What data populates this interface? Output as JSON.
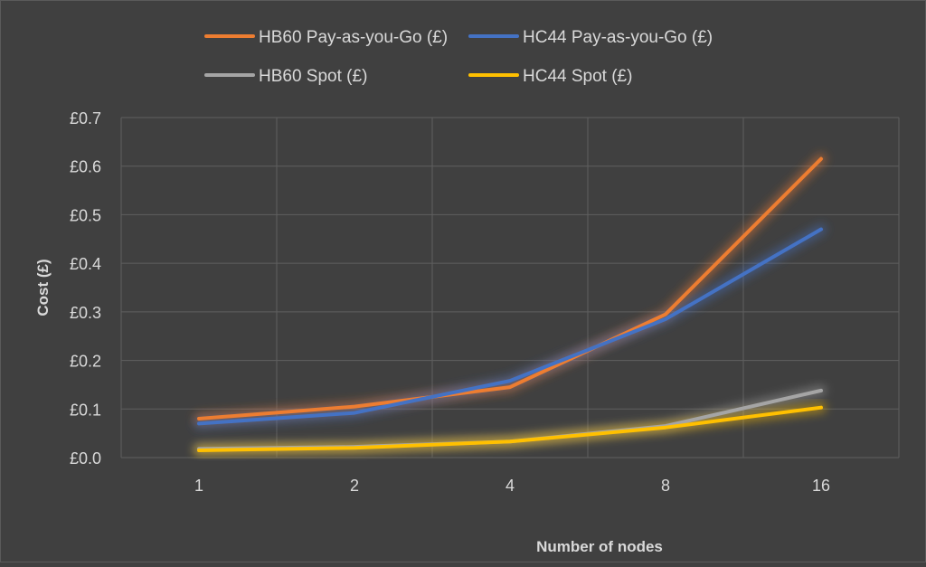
{
  "chart_data": {
    "type": "line",
    "title": "",
    "xlabel": "Number of nodes",
    "ylabel": "Cost (£)",
    "categories": [
      "1",
      "2",
      "4",
      "8",
      "16"
    ],
    "ylim": [
      0,
      0.7
    ],
    "yticks": [
      0.0,
      0.1,
      0.2,
      0.3,
      0.4,
      0.5,
      0.6,
      0.7
    ],
    "ytick_labels": [
      "£0.0",
      "£0.1",
      "£0.2",
      "£0.3",
      "£0.4",
      "£0.5",
      "£0.6",
      "£0.7"
    ],
    "grid": true,
    "legend_position": "top",
    "series": [
      {
        "name": "HB60 Pay-as-you-Go (£)",
        "color": "#ED7D31",
        "values": [
          0.08,
          0.105,
          0.145,
          0.295,
          0.615
        ]
      },
      {
        "name": "HC44 Pay-as-you-Go (£)",
        "color": "#4472C4",
        "values": [
          0.07,
          0.092,
          0.158,
          0.285,
          0.47
        ]
      },
      {
        "name": "HB60 Spot (£)",
        "color": "#A5A5A5",
        "values": [
          0.018,
          0.022,
          0.033,
          0.065,
          0.138
        ]
      },
      {
        "name": "HC44 Spot (£)",
        "color": "#FFC000",
        "values": [
          0.015,
          0.02,
          0.033,
          0.062,
          0.103
        ]
      }
    ]
  }
}
